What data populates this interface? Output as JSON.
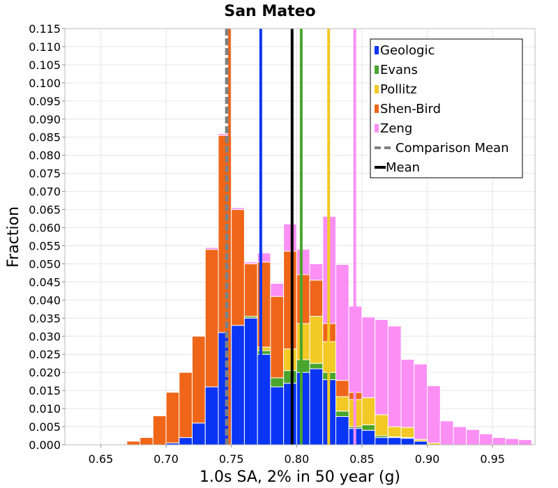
{
  "chart_data": {
    "type": "bar",
    "title": "San Mateo",
    "xlabel": "1.0s SA, 2% in 50 year (g)",
    "ylabel": "Fraction",
    "xlim": [
      0.6225,
      0.9825
    ],
    "ylim": [
      0,
      0.115
    ],
    "xticks": [
      "0.65",
      "0.70",
      "0.75",
      "0.80",
      "0.85",
      "0.90",
      "0.95"
    ],
    "yticks": [
      "0.000",
      "0.005",
      "0.010",
      "0.015",
      "0.020",
      "0.025",
      "0.030",
      "0.035",
      "0.040",
      "0.045",
      "0.050",
      "0.055",
      "0.060",
      "0.065",
      "0.070",
      "0.075",
      "0.080",
      "0.085",
      "0.090",
      "0.095",
      "0.100",
      "0.105",
      "0.110",
      "0.115"
    ],
    "grid": true,
    "stacked": true,
    "legend_position": "top-right",
    "bin_width": 0.01,
    "bin_centers": [
      0.655,
      0.665,
      0.675,
      0.685,
      0.695,
      0.705,
      0.715,
      0.725,
      0.735,
      0.745,
      0.755,
      0.765,
      0.775,
      0.785,
      0.795,
      0.805,
      0.815,
      0.825,
      0.835,
      0.845,
      0.855,
      0.865,
      0.875,
      0.885,
      0.895,
      0.905,
      0.915,
      0.925,
      0.935,
      0.945,
      0.955,
      0.965,
      0.975
    ],
    "series": [
      {
        "name": "Geologic",
        "color": "#0a35f5",
        "values": [
          0,
          0,
          0,
          0,
          0,
          0.0005,
          0.002,
          0.006,
          0.016,
          0.031,
          0.033,
          0.035,
          0.025,
          0.016,
          0.017,
          0.02,
          0.021,
          0.018,
          0.0078,
          0.0045,
          0.004,
          0.002,
          0.002,
          0.0018,
          0.001,
          0,
          0,
          0,
          0,
          0,
          0,
          0,
          0
        ]
      },
      {
        "name": "Evans",
        "color": "#49a52c",
        "values": [
          0,
          0,
          0,
          0,
          0,
          0,
          0,
          0,
          0,
          0,
          0,
          0.0005,
          0.001,
          0.0025,
          0.0035,
          0.0035,
          0.0015,
          0.002,
          0.0015,
          0.0005,
          0.0015,
          0.0005,
          0.0002,
          0.0002,
          0,
          0,
          0,
          0,
          0,
          0,
          0,
          0,
          0
        ]
      },
      {
        "name": "Pollitz",
        "color": "#f2c925",
        "values": [
          0,
          0,
          0,
          0,
          0,
          0,
          0,
          0,
          0,
          0,
          0,
          0,
          0.001,
          0,
          0.006,
          0.01,
          0.013,
          0.0085,
          0.004,
          0.0075,
          0.0075,
          0.0058,
          0.0028,
          0.0028,
          0.0005,
          0.0005,
          0,
          0,
          0,
          0,
          0,
          0,
          0
        ]
      },
      {
        "name": "Shen-Bird",
        "color": "#f06619",
        "values": [
          0,
          0,
          0.001,
          0.002,
          0.008,
          0.014,
          0.018,
          0.024,
          0.038,
          0.0545,
          0.032,
          0.0145,
          0.0235,
          0.0225,
          0.027,
          0.0135,
          0.01,
          0.005,
          0.0045,
          0.002,
          0,
          0,
          0,
          0,
          0,
          0,
          0,
          0,
          0,
          0,
          0,
          0,
          0
        ]
      },
      {
        "name": "Zeng",
        "color": "#fb8ff4",
        "values": [
          0,
          0,
          0,
          0,
          0,
          0,
          0,
          0,
          0.0005,
          0.0005,
          0.0005,
          0.0005,
          0.0025,
          0.0036,
          0.0075,
          0.007,
          0.0045,
          0.0296,
          0.032,
          0.0238,
          0.0223,
          0.0263,
          0.0278,
          0.0188,
          0.0208,
          0.0158,
          0.0066,
          0.005,
          0.0042,
          0.003,
          0.002,
          0.0017,
          0.0014
        ]
      }
    ],
    "lines": [
      {
        "name": "Shen-Bird",
        "x": 0.7485,
        "color": "#f06619",
        "style": "solid",
        "in_legend": false
      },
      {
        "name": "Geologic",
        "x": 0.7725,
        "color": "#0a35f5",
        "style": "solid",
        "in_legend": false
      },
      {
        "name": "Evans",
        "x": 0.8035,
        "color": "#49a52c",
        "style": "solid",
        "in_legend": false
      },
      {
        "name": "Pollitz",
        "x": 0.8245,
        "color": "#f2c925",
        "style": "solid",
        "in_legend": false
      },
      {
        "name": "Zeng",
        "x": 0.8445,
        "color": "#fb8ff4",
        "style": "solid",
        "in_legend": false
      },
      {
        "name": "Comparison Mean",
        "x": 0.7465,
        "color": "#808080",
        "style": "dashed",
        "in_legend": true
      },
      {
        "name": "Mean",
        "x": 0.7965,
        "color": "#000000",
        "style": "solid",
        "in_legend": true
      }
    ],
    "legend": [
      "Geologic",
      "Evans",
      "Pollitz",
      "Shen-Bird",
      "Zeng",
      "Comparison Mean",
      "Mean"
    ]
  }
}
